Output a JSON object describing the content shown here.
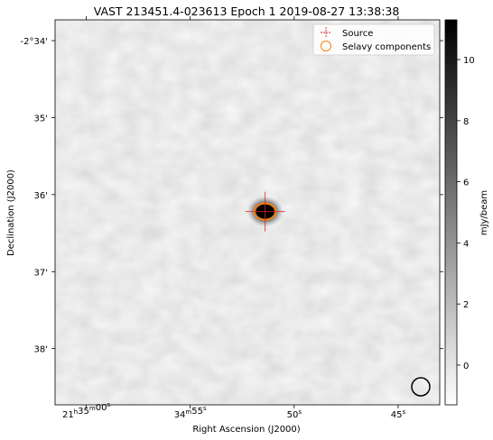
{
  "chart_data": {
    "type": "heatmap",
    "title": "VAST 213451.4-023613 Epoch 1 2019-08-27 13:38:38",
    "xlabel": "Right Ascension (J2000)",
    "ylabel": "Declination (J2000)",
    "x_ticks": [
      {
        "ra_sec": 60.0,
        "label": "21h35m00s",
        "parts": [
          [
            "21",
            "h"
          ],
          [
            "35",
            "m"
          ],
          [
            "00",
            "s"
          ]
        ]
      },
      {
        "ra_sec": 55.0,
        "label": "34m55s",
        "parts": [
          [
            "34",
            "m"
          ],
          [
            "55",
            "s"
          ]
        ]
      },
      {
        "ra_sec": 50.0,
        "label": "50s",
        "parts": [
          [
            "50",
            "s"
          ]
        ]
      },
      {
        "ra_sec": 45.0,
        "label": "45s",
        "parts": [
          [
            "45",
            "s"
          ]
        ]
      }
    ],
    "xlim_ra_sec": [
      61.5,
      43.0
    ],
    "y_ticks": [
      {
        "dec_arcmin": 34,
        "label": "-2°34'"
      },
      {
        "dec_arcmin": 35,
        "label": "35'"
      },
      {
        "dec_arcmin": 36,
        "label": "36'"
      },
      {
        "dec_arcmin": 37,
        "label": "37'"
      },
      {
        "dec_arcmin": 38,
        "label": "38'"
      }
    ],
    "ylim_dec_arcmin": [
      33.73,
      38.73
    ],
    "colorbar": {
      "label": "mJy/beam",
      "range": [
        -1.3,
        11.3
      ],
      "ticks": [
        0,
        2,
        4,
        6,
        8,
        10
      ],
      "colormap": "gray_r"
    },
    "background_level_mjy": 0.7,
    "source": {
      "ra_sec": 51.4,
      "dec_arcmin": 36.22,
      "peak_mjy": 11.0
    },
    "selavy_component": {
      "ra_sec": 51.4,
      "dec_arcmin": 36.22
    },
    "beam": {
      "shape": "circle"
    },
    "legend": {
      "position": "upper right",
      "items": [
        {
          "label": "Source",
          "marker": "+",
          "color": "#d62728"
        },
        {
          "label": "Selavy components",
          "marker": "o",
          "color": "#ff7f0e"
        }
      ]
    }
  }
}
